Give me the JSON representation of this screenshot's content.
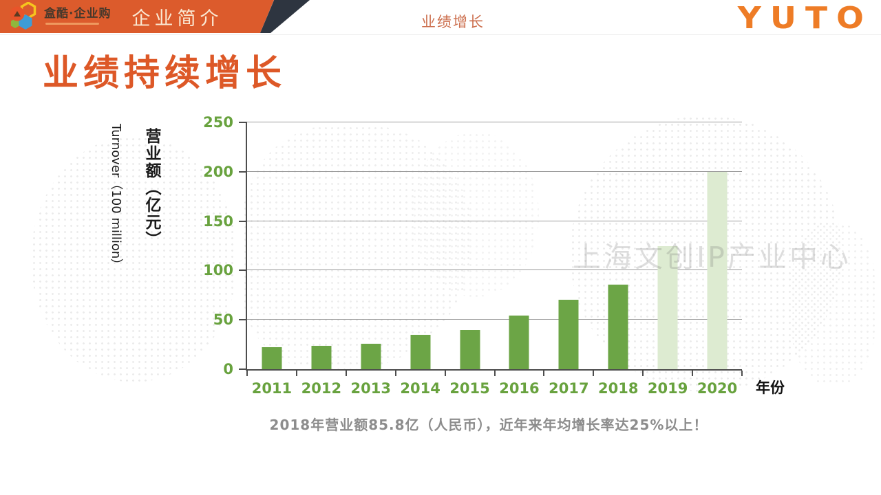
{
  "header": {
    "logo_text": "盒酷·企业购",
    "section_title": "企业简介",
    "breadcrumb": "业绩增长",
    "brand": "YUTO"
  },
  "page": {
    "title": "业绩持续增长"
  },
  "watermark": "上海文创IP产业中心",
  "chart_data": {
    "type": "bar",
    "title": "",
    "categories": [
      "2011",
      "2012",
      "2013",
      "2014",
      "2015",
      "2016",
      "2017",
      "2018",
      "2019",
      "2020"
    ],
    "values": [
      22,
      24,
      26,
      35,
      40,
      54,
      70,
      85.8,
      125,
      200
    ],
    "styles": [
      "actual",
      "actual",
      "actual",
      "actual",
      "actual",
      "actual",
      "actual",
      "actual",
      "projected",
      "projected"
    ],
    "y_ticks": [
      0,
      50,
      100,
      150,
      200,
      250
    ],
    "ylim": [
      0,
      250
    ],
    "xlabel": "年份",
    "ylabel_cn": "营业额（亿元）",
    "ylabel_en": "Turnover（100 million）",
    "grid": "horizontal",
    "legend": "none",
    "colors": {
      "bar_actual": "#6CA546",
      "bar_projected": "#DDEBD1",
      "tick_label": "#68A23E",
      "gridline": "#999999",
      "axis": "#4d4d4d"
    }
  },
  "caption": "2018年营业额85.8亿（人民币），近年来年均增长率达25%以上！",
  "colors": {
    "header_orange": "#DC5B2C",
    "header_slash_dark": "#2E3540",
    "title_orange": "#DD5827",
    "brand_orange": "#EE7C26",
    "breadcrumb_orange": "#CC6F4E",
    "caption_gray": "#8C8C8C"
  }
}
